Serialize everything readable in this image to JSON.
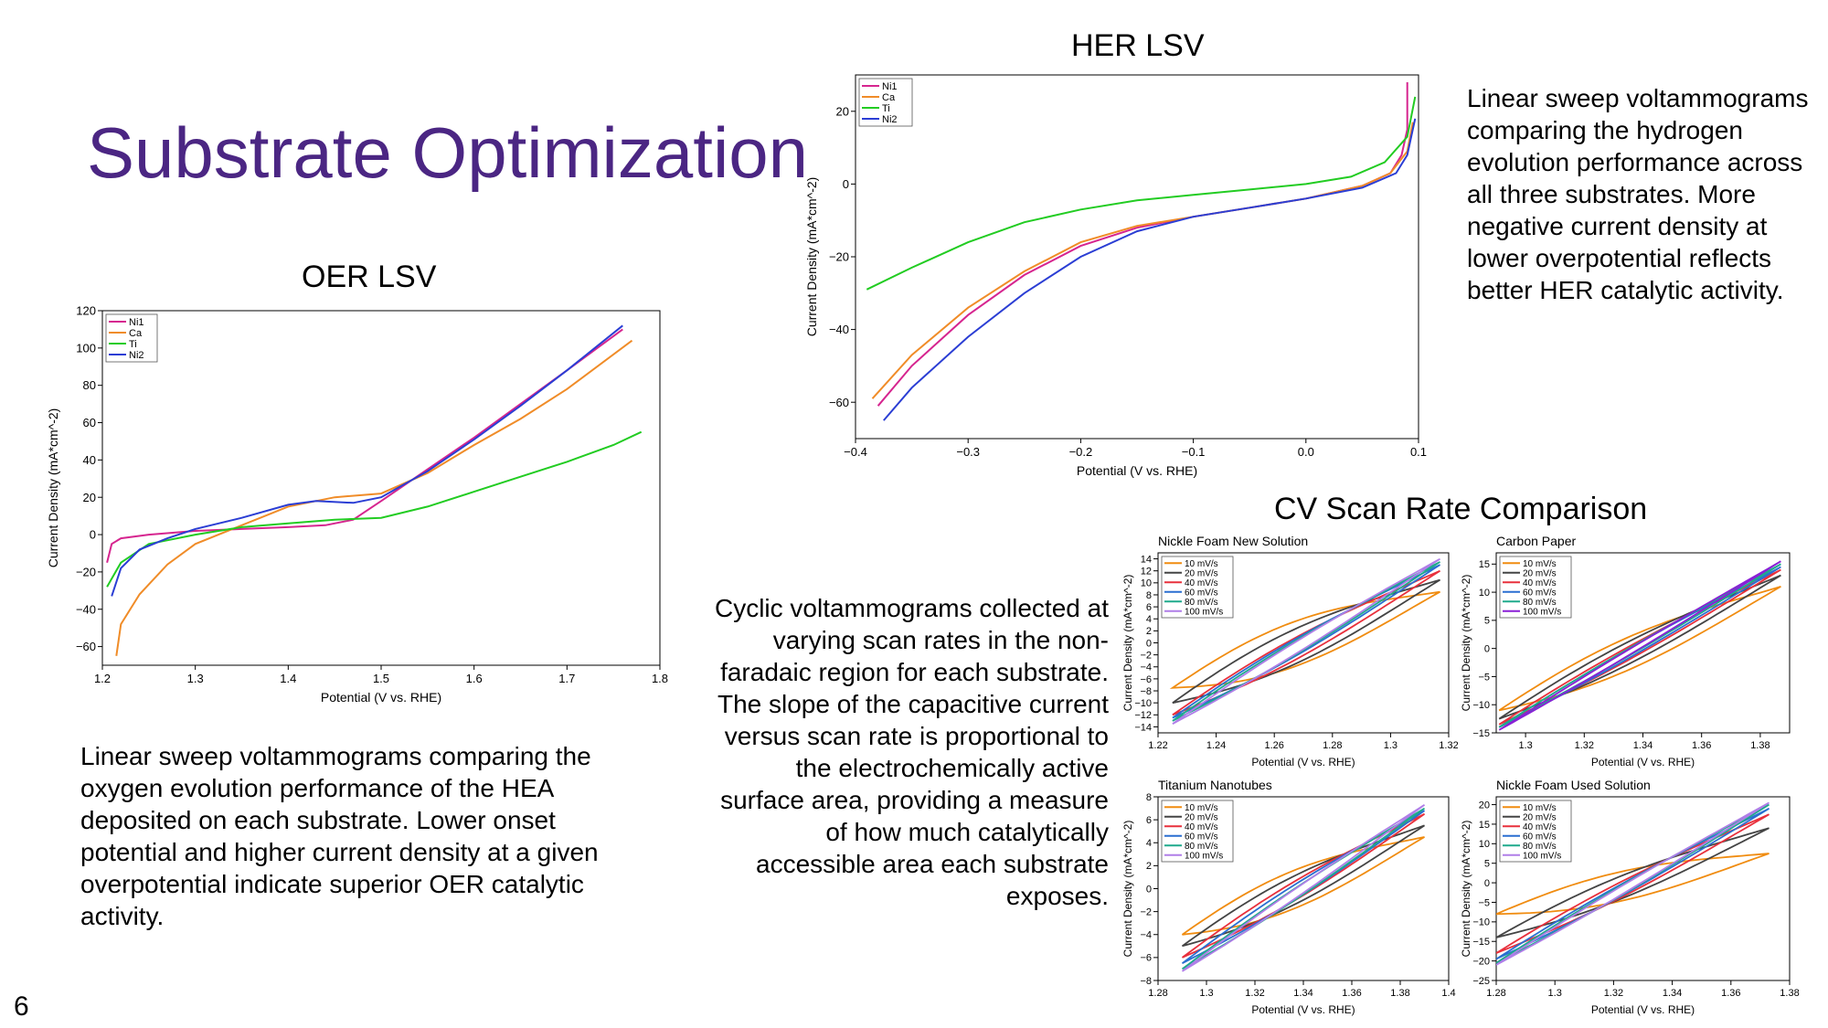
{
  "slide": {
    "title": "Substrate Optimization",
    "page_number": "6",
    "accent_color": "#4b2683"
  },
  "captions": {
    "oer_title": "OER LSV",
    "her_title": "HER LSV",
    "cv_title": "CV Scan Rate Comparison",
    "oer_text": "Linear sweep voltammograms comparing the oxygen evolution performance of the HEA deposited on each substrate. Lower onset potential and higher current density at a given overpotential indicate superior OER catalytic activity.",
    "her_text": "Linear sweep voltammograms comparing the hydrogen evolution performance across all three substrates. More negative current density at lower overpotential reflects better HER catalytic activity.",
    "cv_text": "Cyclic voltammograms collected at varying scan rates in the non-faradaic region for each substrate. The slope of the capacitive current versus scan rate is proportional to the electrochemically active surface area, providing a measure of how much catalytically accessible area each substrate exposes."
  },
  "chart_data": [
    {
      "id": "oer",
      "type": "line",
      "title": "",
      "xlabel": "Potential (V vs. RHE)",
      "ylabel": "Current Density (mA*cm^-2)",
      "xlim": [
        1.2,
        1.8
      ],
      "ylim": [
        -70,
        120
      ],
      "xticks": [
        1.2,
        1.3,
        1.4,
        1.5,
        1.6,
        1.7,
        1.8
      ],
      "yticks": [
        -60,
        -40,
        -20,
        0,
        20,
        40,
        60,
        80,
        100,
        120
      ],
      "legend": "top-left",
      "series": [
        {
          "name": "Ni1",
          "color": "#d6258f",
          "points": [
            [
              1.205,
              -15
            ],
            [
              1.21,
              -5
            ],
            [
              1.22,
              -2
            ],
            [
              1.25,
              0
            ],
            [
              1.3,
              2
            ],
            [
              1.35,
              3
            ],
            [
              1.4,
              4
            ],
            [
              1.44,
              5
            ],
            [
              1.47,
              8
            ],
            [
              1.5,
              18
            ],
            [
              1.55,
              35
            ],
            [
              1.6,
              52
            ],
            [
              1.65,
              70
            ],
            [
              1.7,
              88
            ],
            [
              1.76,
              110
            ]
          ]
        },
        {
          "name": "Ca",
          "color": "#f08c28",
          "points": [
            [
              1.215,
              -65
            ],
            [
              1.22,
              -48
            ],
            [
              1.24,
              -32
            ],
            [
              1.27,
              -16
            ],
            [
              1.3,
              -5
            ],
            [
              1.35,
              5
            ],
            [
              1.4,
              15
            ],
            [
              1.45,
              20
            ],
            [
              1.5,
              22
            ],
            [
              1.55,
              33
            ],
            [
              1.6,
              48
            ],
            [
              1.65,
              62
            ],
            [
              1.7,
              78
            ],
            [
              1.77,
              104
            ]
          ]
        },
        {
          "name": "Ti",
          "color": "#22cc22",
          "points": [
            [
              1.205,
              -28
            ],
            [
              1.22,
              -15
            ],
            [
              1.25,
              -5
            ],
            [
              1.3,
              0
            ],
            [
              1.35,
              4
            ],
            [
              1.4,
              6
            ],
            [
              1.45,
              8
            ],
            [
              1.5,
              9
            ],
            [
              1.55,
              15
            ],
            [
              1.6,
              23
            ],
            [
              1.65,
              31
            ],
            [
              1.7,
              39
            ],
            [
              1.75,
              48
            ],
            [
              1.78,
              55
            ]
          ]
        },
        {
          "name": "Ni2",
          "color": "#2b3ed4",
          "points": [
            [
              1.21,
              -33
            ],
            [
              1.22,
              -18
            ],
            [
              1.24,
              -8
            ],
            [
              1.27,
              -2
            ],
            [
              1.3,
              3
            ],
            [
              1.35,
              9
            ],
            [
              1.4,
              16
            ],
            [
              1.43,
              18
            ],
            [
              1.47,
              17
            ],
            [
              1.5,
              20
            ],
            [
              1.55,
              34
            ],
            [
              1.6,
              51
            ],
            [
              1.65,
              69
            ],
            [
              1.7,
              88
            ],
            [
              1.76,
              112
            ]
          ]
        }
      ]
    },
    {
      "id": "her",
      "type": "line",
      "title": "",
      "xlabel": "Potential (V vs. RHE)",
      "ylabel": "Current Density (mA*cm^-2)",
      "xlim": [
        -0.4,
        0.1
      ],
      "ylim": [
        -70,
        30
      ],
      "xticks": [
        -0.4,
        -0.3,
        -0.2,
        -0.1,
        0.0,
        0.1
      ],
      "xticklabels": [
        "−0.4",
        "−0.3",
        "−0.2",
        "−0.1",
        "0.0",
        "0.1"
      ],
      "yticks": [
        -60,
        -40,
        -20,
        0,
        20
      ],
      "yticklabels": [
        "−60",
        "−40",
        "−20",
        "0",
        "20"
      ],
      "legend": "top-left",
      "series": [
        {
          "name": "Ni1",
          "color": "#d6258f",
          "points": [
            [
              -0.38,
              -61
            ],
            [
              -0.35,
              -50
            ],
            [
              -0.3,
              -36
            ],
            [
              -0.25,
              -25
            ],
            [
              -0.2,
              -17
            ],
            [
              -0.15,
              -12
            ],
            [
              -0.1,
              -9
            ],
            [
              -0.05,
              -6.5
            ],
            [
              0.0,
              -4
            ],
            [
              0.05,
              -0.5
            ],
            [
              0.075,
              3
            ],
            [
              0.085,
              8
            ],
            [
              0.09,
              15
            ],
            [
              0.09,
              28
            ]
          ]
        },
        {
          "name": "Ca",
          "color": "#f08c28",
          "points": [
            [
              -0.385,
              -59
            ],
            [
              -0.35,
              -47
            ],
            [
              -0.3,
              -34
            ],
            [
              -0.25,
              -24
            ],
            [
              -0.2,
              -16
            ],
            [
              -0.15,
              -11.5
            ],
            [
              -0.1,
              -9
            ],
            [
              -0.05,
              -6.5
            ],
            [
              0.0,
              -4
            ],
            [
              0.05,
              -0.5
            ],
            [
              0.075,
              3
            ],
            [
              0.09,
              9
            ],
            [
              0.095,
              17
            ]
          ]
        },
        {
          "name": "Ti",
          "color": "#22cc22",
          "points": [
            [
              -0.39,
              -29
            ],
            [
              -0.35,
              -23
            ],
            [
              -0.3,
              -16
            ],
            [
              -0.25,
              -10.5
            ],
            [
              -0.2,
              -7
            ],
            [
              -0.15,
              -4.5
            ],
            [
              -0.1,
              -3
            ],
            [
              -0.05,
              -1.5
            ],
            [
              0.0,
              0
            ],
            [
              0.04,
              2
            ],
            [
              0.07,
              6
            ],
            [
              0.09,
              13
            ],
            [
              0.097,
              24
            ]
          ]
        },
        {
          "name": "Ni2",
          "color": "#2b3ed4",
          "points": [
            [
              -0.375,
              -65
            ],
            [
              -0.35,
              -56
            ],
            [
              -0.3,
              -42
            ],
            [
              -0.25,
              -30
            ],
            [
              -0.2,
              -20
            ],
            [
              -0.15,
              -13
            ],
            [
              -0.1,
              -9
            ],
            [
              -0.05,
              -6.5
            ],
            [
              0.0,
              -4
            ],
            [
              0.05,
              -1
            ],
            [
              0.08,
              3
            ],
            [
              0.09,
              8
            ],
            [
              0.097,
              18
            ]
          ]
        }
      ]
    },
    {
      "id": "cv_nf_new",
      "type": "line",
      "title": "Nickle Foam New Solution",
      "xlabel": "Potential (V vs. RHE)",
      "ylabel": "Current Density (mA*cm^-2)",
      "xlim": [
        1.22,
        1.32
      ],
      "ylim": [
        -15,
        15
      ],
      "xticks": [
        1.22,
        1.24,
        1.26,
        1.28,
        1.3,
        1.32
      ],
      "yticks": [
        -14,
        -12,
        -10,
        -8,
        -6,
        -4,
        -2,
        0,
        2,
        4,
        6,
        8,
        10,
        12,
        14
      ],
      "legend": "top-left",
      "loop": {
        "x0": 1.225,
        "x1": 1.317,
        "cross": [
          1.268,
          -5
        ]
      },
      "series": [
        {
          "name": "10 mV/s",
          "color": "#f08c10",
          "ends": [
            -7.5,
            8.5
          ],
          "h": 4.5
        },
        {
          "name": "20 mV/s",
          "color": "#444444",
          "ends": [
            -10,
            10.5
          ],
          "h": 3.5
        },
        {
          "name": "40 mV/s",
          "color": "#e8303c",
          "ends": [
            -12,
            12
          ],
          "h": 2.2
        },
        {
          "name": "60 mV/s",
          "color": "#2a6fd1",
          "ends": [
            -12.5,
            13
          ],
          "h": 1.7
        },
        {
          "name": "80 mV/s",
          "color": "#1faa8c",
          "ends": [
            -13,
            13.5
          ],
          "h": 1.4
        },
        {
          "name": "100 mV/s",
          "color": "#b07ee8",
          "ends": [
            -13.5,
            14
          ],
          "h": 1.2
        }
      ]
    },
    {
      "id": "cv_carbon",
      "type": "line",
      "title": "Carbon Paper",
      "xlabel": "Potential (V vs. RHE)",
      "ylabel": "Current Density (mA*cm^-2)",
      "xlim": [
        1.29,
        1.39
      ],
      "ylim": [
        -15,
        17
      ],
      "xticks": [
        1.3,
        1.32,
        1.34,
        1.36,
        1.38
      ],
      "yticks": [
        -15,
        -10,
        -5,
        0,
        5,
        10,
        15
      ],
      "legend": "top-left",
      "loop": {
        "x0": 1.291,
        "x1": 1.387,
        "cross": [
          1.34,
          0
        ]
      },
      "series": [
        {
          "name": "10 mV/s",
          "color": "#f08c10",
          "ends": [
            -11,
            11
          ],
          "h": 3.5
        },
        {
          "name": "20 mV/s",
          "color": "#444444",
          "ends": [
            -12.5,
            13
          ],
          "h": 2.4
        },
        {
          "name": "40 mV/s",
          "color": "#e8303c",
          "ends": [
            -13.5,
            14
          ],
          "h": 1.4
        },
        {
          "name": "60 mV/s",
          "color": "#2a6fd1",
          "ends": [
            -14,
            14.5
          ],
          "h": 1.0
        },
        {
          "name": "80 mV/s",
          "color": "#1faa8c",
          "ends": [
            -14,
            15
          ],
          "h": 0.8
        },
        {
          "name": "100 mV/s",
          "color": "#8a1fd6",
          "ends": [
            -14.5,
            15.5
          ],
          "h": 0.6
        }
      ]
    },
    {
      "id": "cv_ti",
      "type": "line",
      "title": "Titanium Nanotubes",
      "xlabel": "Potential (V vs. RHE)",
      "ylabel": "Current Density (mA*cm^-2)",
      "xlim": [
        1.28,
        1.4
      ],
      "ylim": [
        -8,
        8
      ],
      "xticks": [
        1.28,
        1.3,
        1.32,
        1.34,
        1.36,
        1.38,
        1.4
      ],
      "yticks": [
        -8,
        -6,
        -4,
        -2,
        0,
        2,
        4,
        6,
        8
      ],
      "legend": "top-left",
      "loop": {
        "x0": 1.29,
        "x1": 1.39,
        "cross": [
          1.34,
          -2
        ]
      },
      "series": [
        {
          "name": "10 mV/s",
          "color": "#f08c10",
          "ends": [
            -4,
            4.5
          ],
          "h": 2.0
        },
        {
          "name": "20 mV/s",
          "color": "#444444",
          "ends": [
            -5,
            5.5
          ],
          "h": 1.5
        },
        {
          "name": "40 mV/s",
          "color": "#e8303c",
          "ends": [
            -6,
            6.5
          ],
          "h": 1.0
        },
        {
          "name": "60 mV/s",
          "color": "#2a6fd1",
          "ends": [
            -6.5,
            6.8
          ],
          "h": 0.8
        },
        {
          "name": "80 mV/s",
          "color": "#1faa8c",
          "ends": [
            -7,
            7
          ],
          "h": 0.6
        },
        {
          "name": "100 mV/s",
          "color": "#b07ee8",
          "ends": [
            -7.2,
            7.3
          ],
          "h": 0.5
        }
      ]
    },
    {
      "id": "cv_nf_used",
      "type": "line",
      "title": "Nickle Foam Used Solution",
      "xlabel": "Potential (V vs. RHE)",
      "ylabel": "Current Density (mA*cm^-2)",
      "xlim": [
        1.28,
        1.38
      ],
      "ylim": [
        -25,
        22
      ],
      "xticks": [
        1.28,
        1.3,
        1.32,
        1.34,
        1.36,
        1.38
      ],
      "yticks": [
        -25,
        -20,
        -15,
        -10,
        -5,
        0,
        5,
        10,
        15,
        20
      ],
      "legend": "top-left",
      "loop": {
        "x0": 1.28,
        "x1": 1.373,
        "cross": [
          1.33,
          -4
        ]
      },
      "series": [
        {
          "name": "10 mV/s",
          "color": "#f08c10",
          "ends": [
            -8,
            7.5
          ],
          "h": 4.5
        },
        {
          "name": "20 mV/s",
          "color": "#444444",
          "ends": [
            -14,
            14
          ],
          "h": 3.5
        },
        {
          "name": "40 mV/s",
          "color": "#e8303c",
          "ends": [
            -18,
            17.5
          ],
          "h": 2.4
        },
        {
          "name": "60 mV/s",
          "color": "#2a6fd1",
          "ends": [
            -19.5,
            19
          ],
          "h": 1.8
        },
        {
          "name": "80 mV/s",
          "color": "#1faa8c",
          "ends": [
            -20.5,
            20
          ],
          "h": 1.5
        },
        {
          "name": "100 mV/s",
          "color": "#b07ee8",
          "ends": [
            -21,
            20.5
          ],
          "h": 1.3
        }
      ]
    }
  ]
}
